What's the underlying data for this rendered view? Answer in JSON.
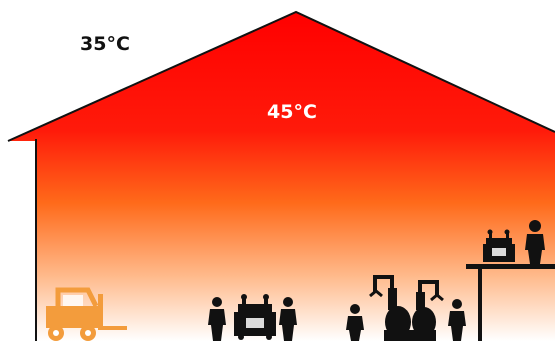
{
  "labels": {
    "outside_temperature": "35°C",
    "inside_temperature": "45°C"
  },
  "colors": {
    "roof_red": "#ff0000",
    "mid_orange": "#ff6a1a",
    "floor_white": "#ffffff",
    "silhouette": "#111111",
    "forklift_orange": "#f39c3c",
    "outside_label": "#111111",
    "inside_label": "#ffffff"
  },
  "icons": [
    "forklift-icon",
    "person-icon",
    "packaging-machine-icon",
    "robot-arm-icon",
    "mezzanine-platform"
  ]
}
